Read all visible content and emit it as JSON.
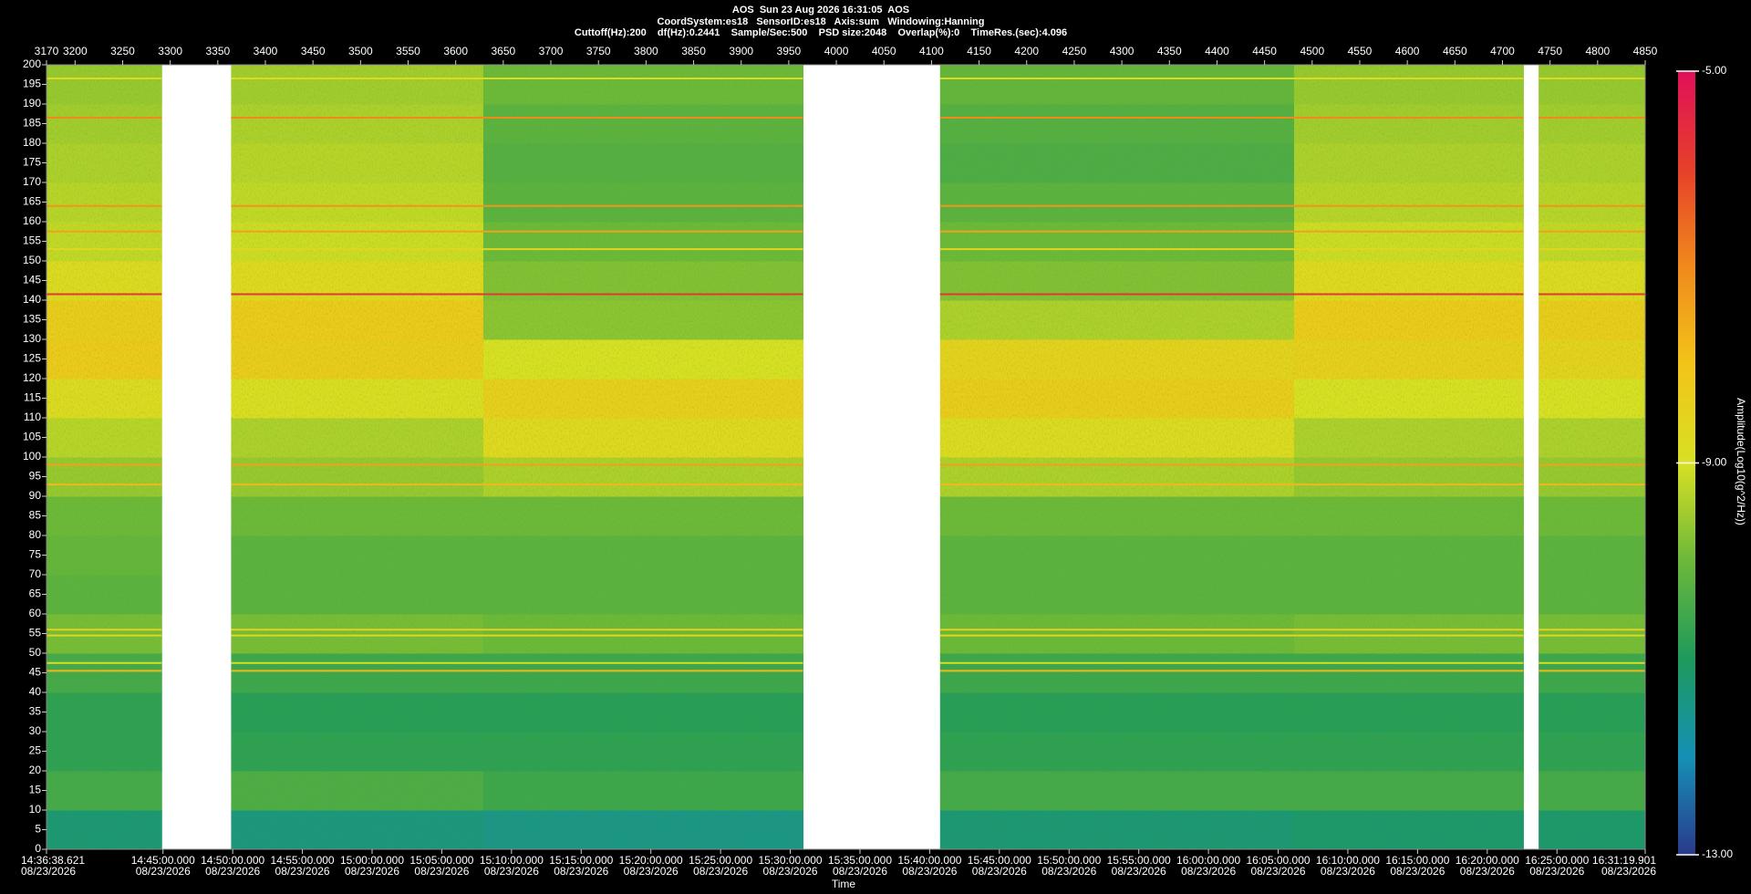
{
  "chart_data": {
    "type": "spectrogram",
    "title": "AOS  Sun 23 Aug 2026 16:31:05  AOS",
    "subtitle": [
      "CoordSystem:es18   SensorID:es18   Axis:sum   Windowing:Hanning",
      "Cuttoff(Hz):200    df(Hz):0.2441    Sample/Sec:500    PSD size:2048    Overlap(%):0    TimeRes.(sec):4.096"
    ],
    "x_label": "Time",
    "colorbar_label": "Amplitude(Log10(g^2/Hz))",
    "xlim": [
      3170,
      4850
    ],
    "ylim": [
      0,
      200
    ],
    "xticks": [
      3170,
      3200,
      3250,
      3300,
      3350,
      3400,
      3450,
      3500,
      3550,
      3600,
      3650,
      3700,
      3750,
      3800,
      3850,
      3900,
      3950,
      4000,
      4050,
      4100,
      4150,
      4200,
      4250,
      4300,
      4350,
      4400,
      4450,
      4500,
      4550,
      4600,
      4650,
      4700,
      4750,
      4800,
      4850
    ],
    "yticks": [
      0,
      5,
      10,
      15,
      20,
      25,
      30,
      35,
      40,
      45,
      50,
      55,
      60,
      65,
      70,
      75,
      80,
      85,
      90,
      95,
      100,
      105,
      110,
      115,
      120,
      125,
      130,
      135,
      140,
      145,
      150,
      155,
      160,
      165,
      170,
      175,
      180,
      185,
      190,
      195,
      200
    ],
    "time_ticks": [
      {
        "value": 3170,
        "label": "14:36:38.621",
        "date": "08/23/2026"
      },
      {
        "value": 3292.41,
        "label": "14:45:00.000",
        "date": "08/23/2026"
      },
      {
        "value": 3365.65,
        "label": "14:50:00.000",
        "date": "08/23/2026"
      },
      {
        "value": 3438.89,
        "label": "14:55:00.000",
        "date": "08/23/2026"
      },
      {
        "value": 3512.13,
        "label": "15:00:00.000",
        "date": "08/23/2026"
      },
      {
        "value": 3585.38,
        "label": "15:05:00.000",
        "date": "08/23/2026"
      },
      {
        "value": 3658.62,
        "label": "15:10:00.000",
        "date": "08/23/2026"
      },
      {
        "value": 3731.86,
        "label": "15:15:00.000",
        "date": "08/23/2026"
      },
      {
        "value": 3805.1,
        "label": "15:20:00.000",
        "date": "08/23/2026"
      },
      {
        "value": 3878.35,
        "label": "15:25:00.000",
        "date": "08/23/2026"
      },
      {
        "value": 3951.59,
        "label": "15:30:00.000",
        "date": "08/23/2026"
      },
      {
        "value": 4024.83,
        "label": "15:35:00.000",
        "date": "08/23/2026"
      },
      {
        "value": 4098.07,
        "label": "15:40:00.000",
        "date": "08/23/2026"
      },
      {
        "value": 4171.32,
        "label": "15:45:00.000",
        "date": "08/23/2026"
      },
      {
        "value": 4244.56,
        "label": "15:50:00.000",
        "date": "08/23/2026"
      },
      {
        "value": 4317.8,
        "label": "15:55:00.000",
        "date": "08/23/2026"
      },
      {
        "value": 4391.04,
        "label": "16:00:00.000",
        "date": "08/23/2026"
      },
      {
        "value": 4464.29,
        "label": "16:05:00.000",
        "date": "08/23/2026"
      },
      {
        "value": 4537.53,
        "label": "16:10:00.000",
        "date": "08/23/2026"
      },
      {
        "value": 4610.77,
        "label": "16:15:00.000",
        "date": "08/23/2026"
      },
      {
        "value": 4684.01,
        "label": "16:20:00.000",
        "date": "08/23/2026"
      },
      {
        "value": 4757.26,
        "label": "16:25:00.000",
        "date": "08/23/2026"
      },
      {
        "value": 4850,
        "label": "16:31:19.901",
        "date": "08/23/2026"
      }
    ],
    "zlim": [
      -13,
      -5
    ],
    "zticks": [
      {
        "value": -5,
        "label": "-5.00"
      },
      {
        "value": -9,
        "label": "-9.00"
      },
      {
        "value": -13,
        "label": "-13.00"
      }
    ],
    "colormap": [
      "#2a3a8c",
      "#1590b5",
      "#1e9a5c",
      "#6cb83a",
      "#d8e024",
      "#f2c419",
      "#f08a1c",
      "#e6402a",
      "#e0105a"
    ],
    "freq_bins": [
      0,
      10,
      20,
      30,
      40,
      50,
      60,
      70,
      80,
      90,
      100,
      110,
      120,
      130,
      140,
      150,
      160,
      170,
      180,
      190,
      200
    ],
    "segments": [
      {
        "x": [
          3170,
          3291
        ],
        "z": [
          -11.3,
          -10.5,
          -10.8,
          -10.8,
          -10.5,
          -9.9,
          -10.2,
          -10.1,
          -10.0,
          -9.6,
          -9.3,
          -8.8,
          -8.2,
          -8.3,
          -8.8,
          -9.2,
          -9.3,
          -9.4,
          -9.5,
          -9.6
        ]
      },
      {
        "x": [
          3364,
          3629
        ],
        "z": [
          -11.4,
          -10.4,
          -10.8,
          -10.9,
          -10.6,
          -9.9,
          -10.2,
          -10.2,
          -10.0,
          -9.6,
          -9.4,
          -8.9,
          -8.3,
          -8.2,
          -8.7,
          -9.1,
          -9.2,
          -9.3,
          -9.4,
          -9.5
        ]
      },
      {
        "x": [
          3629,
          3965
        ],
        "z": [
          -11.5,
          -10.6,
          -10.8,
          -10.9,
          -10.6,
          -10.0,
          -10.2,
          -10.2,
          -10.0,
          -9.4,
          -8.7,
          -8.4,
          -9.0,
          -9.7,
          -9.8,
          -10.0,
          -10.2,
          -10.3,
          -10.2,
          -10.0
        ]
      },
      {
        "x": [
          4109,
          4481
        ],
        "z": [
          -11.3,
          -10.5,
          -10.8,
          -10.9,
          -10.6,
          -10.0,
          -10.2,
          -10.2,
          -10.0,
          -9.4,
          -8.8,
          -8.3,
          -8.5,
          -9.4,
          -9.8,
          -10.0,
          -10.2,
          -10.4,
          -10.3,
          -10.1
        ]
      },
      {
        "x": [
          4481,
          4722
        ],
        "z": [
          -11.2,
          -10.5,
          -10.8,
          -10.9,
          -10.6,
          -9.9,
          -10.2,
          -10.2,
          -10.0,
          -9.6,
          -9.4,
          -9.0,
          -8.4,
          -8.2,
          -8.7,
          -9.1,
          -9.3,
          -9.4,
          -9.5,
          -9.6
        ]
      },
      {
        "x": [
          4738,
          4850
        ],
        "z": [
          -11.2,
          -10.5,
          -10.8,
          -10.9,
          -10.6,
          -9.9,
          -10.2,
          -10.2,
          -10.0,
          -9.6,
          -9.4,
          -9.0,
          -8.5,
          -8.3,
          -8.8,
          -9.2,
          -9.3,
          -9.4,
          -9.5,
          -9.6
        ]
      }
    ],
    "tones": [
      {
        "freq": 141.5,
        "amplitude": -5.8
      },
      {
        "freq": 186.5,
        "amplitude": -7.0
      },
      {
        "freq": 164,
        "amplitude": -7.2
      },
      {
        "freq": 157.5,
        "amplitude": -7.4
      },
      {
        "freq": 153,
        "amplitude": -8.6
      },
      {
        "freq": 196.5,
        "amplitude": -8.8
      },
      {
        "freq": 98,
        "amplitude": -7.4
      },
      {
        "freq": 93,
        "amplitude": -7.8
      },
      {
        "freq": 56,
        "amplitude": -8.4
      },
      {
        "freq": 54.5,
        "amplitude": -8.6
      },
      {
        "freq": 47.5,
        "amplitude": -9.0
      },
      {
        "freq": 45.5,
        "amplitude": -7.8
      }
    ]
  }
}
